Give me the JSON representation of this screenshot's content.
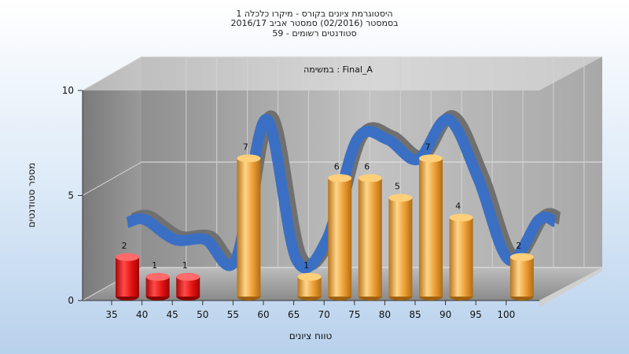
{
  "header": {
    "title_line1": "היסטוגרמת ציונים בקורס - מיקרו כלכלה 1",
    "title_line2": "בסמסטר  (02/2016)  סמסטר אביב 2016/17",
    "title_line3": "סטודנטים רשומים - 59"
  },
  "chart_data": {
    "type": "bar",
    "title": "היסטוגרמת ציונים בקורס - מיקרו כלכלה 1",
    "subtitle": "בסמסטר  (02/2016)  סמסטר אביב 2016/17 — סטודנטים רשומים - 59",
    "annotation": "במשימה : Final_A",
    "xlabel": "טווח ציונים",
    "ylabel": "מספר סטודנטים",
    "ylim": [
      0,
      10
    ],
    "yticks": [
      "0",
      "5",
      "10"
    ],
    "categories": [
      "35",
      "40",
      "45",
      "50",
      "55",
      "60",
      "65",
      "70",
      "75",
      "80",
      "85",
      "90",
      "95",
      "100"
    ],
    "values": [
      2,
      1,
      1,
      0,
      7,
      0,
      1,
      6,
      6,
      5,
      7,
      4,
      0,
      2
    ],
    "value_labels": [
      "2",
      "1",
      "1",
      "",
      "7",
      "",
      "1",
      "6",
      "6",
      "5",
      "7",
      "4",
      "",
      "2"
    ],
    "bar_colors": {
      "fail": "#e01010",
      "pass": "#f0a83c"
    },
    "fail_categories": [
      "35",
      "40",
      "45"
    ],
    "trend_curve": {
      "colors": [
        "#3a6fc4",
        "#707070"
      ]
    },
    "grid": true,
    "legend": "none"
  }
}
